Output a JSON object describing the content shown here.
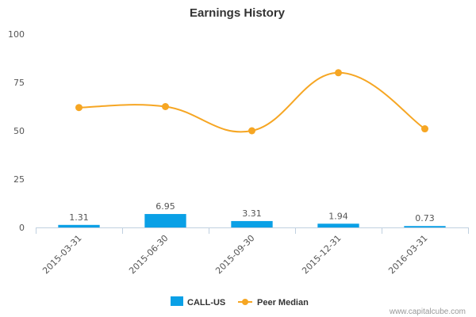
{
  "chart_data": {
    "type": "bar",
    "title": "Earnings History",
    "categories": [
      "2015-03-31",
      "2015-06-30",
      "2015-09-30",
      "2015-12-31",
      "2016-03-31"
    ],
    "ylim": [
      0,
      100
    ],
    "yticks": [
      0,
      25,
      50,
      75,
      100
    ],
    "grid": false,
    "legend_position": "bottom",
    "series": [
      {
        "name": "CALL-US",
        "type": "bar",
        "color": "#0aa0e6",
        "values": [
          1.31,
          6.95,
          3.31,
          1.94,
          0.73
        ],
        "labels": [
          "1.31",
          "6.95",
          "3.31",
          "1.94",
          "0.73"
        ]
      },
      {
        "name": "Peer Median",
        "type": "line",
        "color": "#f6a623",
        "values": [
          62,
          62.5,
          50,
          80,
          51
        ]
      }
    ]
  },
  "credit": "www.capitalcube.com"
}
